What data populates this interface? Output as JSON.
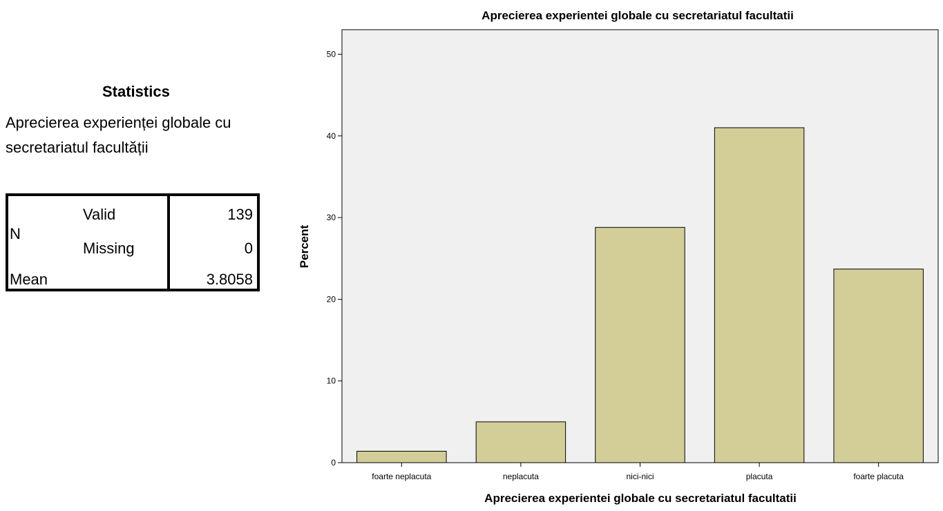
{
  "statistics": {
    "title": "Statistics",
    "variable_label": "Aprecierea experienței globale cu secretariatul facultății",
    "rows": {
      "n_label": "N",
      "valid_label": "Valid",
      "valid_value": "139",
      "missing_label": "Missing",
      "missing_value": "0",
      "mean_label": "Mean",
      "mean_value": "3.8058"
    }
  },
  "chart_data": {
    "type": "bar",
    "title": "Aprecierea experientei globale cu secretariatul facultatii",
    "xlabel": "Aprecierea experientei globale cu secretariatul facultatii",
    "ylabel": "Percent",
    "categories": [
      "foarte neplacuta",
      "neplacuta",
      "nici-nici",
      "placuta",
      "foarte placuta"
    ],
    "values": [
      1.4,
      5.0,
      28.8,
      41.0,
      23.7
    ],
    "yticks": [
      0,
      10,
      20,
      30,
      40,
      50
    ],
    "ylim": [
      0,
      53
    ],
    "grid": false,
    "colors": {
      "bar_fill": "#d3ce98",
      "bar_stroke": "#000000",
      "plot_background": "#f0f0f0"
    }
  }
}
